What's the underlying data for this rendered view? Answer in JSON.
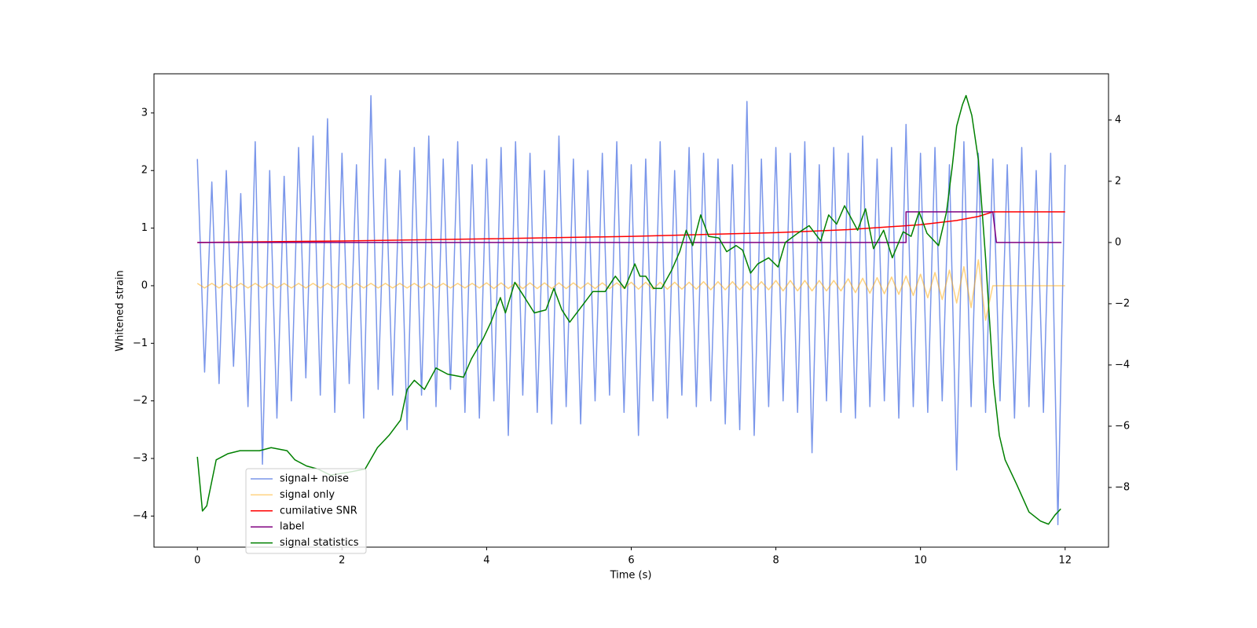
{
  "chart_data": {
    "type": "line",
    "xlabel": "Time (s)",
    "ylabel": "Whitened strain",
    "xlim": [
      -0.6,
      12.6
    ],
    "ylim": [
      -4.54,
      3.68
    ],
    "y2lim": [
      -9.95,
      5.51
    ],
    "xticks": [
      0,
      2,
      4,
      6,
      8,
      10,
      12
    ],
    "yticks": [
      {
        "value": -4,
        "label": "−4"
      },
      {
        "value": -3,
        "label": "−3"
      },
      {
        "value": -2,
        "label": "−2"
      },
      {
        "value": -1,
        "label": "−1"
      },
      0,
      1,
      2,
      3
    ],
    "y2ticks": [
      {
        "value": -8,
        "label": "−8"
      },
      {
        "value": -6,
        "label": "−6"
      },
      {
        "value": -4,
        "label": "−4"
      },
      {
        "value": -2,
        "label": "−2"
      },
      0,
      2,
      4
    ],
    "legend_loc": "lower left",
    "x": [
      0,
      0.1,
      0.2,
      0.3,
      0.4,
      0.5,
      0.6,
      0.7,
      0.8,
      0.9,
      1,
      1.1,
      1.2,
      1.3,
      1.4,
      1.5,
      1.6,
      1.7,
      1.8,
      1.9,
      2,
      2.1,
      2.2,
      2.3,
      2.4,
      2.5,
      2.6,
      2.7,
      2.8,
      2.9,
      3,
      3.1,
      3.2,
      3.3,
      3.4,
      3.5,
      3.6,
      3.7,
      3.8,
      3.9,
      4,
      4.1,
      4.2,
      4.3,
      4.4,
      4.5,
      4.6,
      4.7,
      4.8,
      4.9,
      5,
      5.1,
      5.2,
      5.3,
      5.4,
      5.5,
      5.6,
      5.7,
      5.8,
      5.9,
      6,
      6.1,
      6.2,
      6.3,
      6.4,
      6.5,
      6.6,
      6.7,
      6.8,
      6.9,
      7,
      7.1,
      7.2,
      7.3,
      7.4,
      7.5,
      7.6,
      7.7,
      7.8,
      7.9,
      8,
      8.1,
      8.2,
      8.3,
      8.4,
      8.5,
      8.6,
      8.7,
      8.8,
      8.9,
      9,
      9.1,
      9.2,
      9.3,
      9.4,
      9.5,
      9.6,
      9.7,
      9.8,
      9.9,
      10,
      10.1,
      10.2,
      10.3,
      10.4,
      10.5,
      10.6,
      10.7,
      10.8,
      10.9,
      11,
      11.1,
      11.2,
      11.3,
      11.4,
      11.5,
      11.6,
      11.7,
      11.8,
      11.9,
      12
    ],
    "series": [
      {
        "name": "signal+ noise",
        "color": "#4169e1",
        "alpha": 0.7,
        "values": [
          2.2,
          -1.5,
          1.8,
          -1.7,
          2.0,
          -1.4,
          1.6,
          -2.1,
          2.5,
          -3.1,
          2.0,
          -2.3,
          1.9,
          -2.0,
          2.4,
          -1.6,
          2.6,
          -1.9,
          2.9,
          -2.2,
          2.3,
          -1.7,
          2.1,
          -2.3,
          3.3,
          -1.8,
          2.2,
          -1.9,
          2.0,
          -2.5,
          2.4,
          -1.9,
          2.6,
          -2.1,
          2.2,
          -1.8,
          2.5,
          -2.2,
          2.1,
          -2.3,
          2.2,
          -2.0,
          2.4,
          -2.6,
          2.5,
          -1.9,
          2.3,
          -2.2,
          2.0,
          -2.4,
          2.6,
          -2.1,
          2.2,
          -2.4,
          2.0,
          -2.0,
          2.3,
          -1.9,
          2.5,
          -2.2,
          2.1,
          -2.6,
          2.2,
          -2.0,
          2.5,
          -2.3,
          2.0,
          -1.9,
          2.4,
          -2.1,
          2.3,
          -2.0,
          2.2,
          -2.4,
          2.1,
          -2.5,
          3.2,
          -2.6,
          2.2,
          -2.1,
          2.4,
          -2.0,
          2.3,
          -2.2,
          2.5,
          -2.9,
          2.1,
          -2.0,
          2.4,
          -2.2,
          2.3,
          -2.3,
          2.6,
          -2.1,
          2.2,
          -2.0,
          2.4,
          -2.3,
          2.8,
          -2.1,
          2.3,
          -2.2,
          2.4,
          -2.0,
          2.1,
          -3.2,
          2.5,
          -2.1,
          2.3,
          -2.2,
          2.2,
          -2.0,
          2.1,
          -2.3,
          2.4,
          -2.1,
          2.0,
          -2.2,
          2.3,
          -4.15,
          2.1
        ]
      },
      {
        "name": "signal only",
        "color": "#ffa500",
        "alpha": 0.5,
        "values": [
          0.04,
          -0.04,
          0.04,
          -0.04,
          0.04,
          -0.04,
          0.04,
          -0.04,
          0.04,
          -0.04,
          0.04,
          -0.04,
          0.04,
          -0.04,
          0.04,
          -0.04,
          0.04,
          -0.04,
          0.04,
          -0.04,
          0.04,
          -0.04,
          0.04,
          -0.04,
          0.04,
          -0.04,
          0.04,
          -0.04,
          0.04,
          -0.04,
          0.04,
          -0.04,
          0.04,
          -0.04,
          0.04,
          -0.04,
          0.04,
          -0.04,
          0.04,
          -0.04,
          0.05,
          -0.05,
          0.05,
          -0.05,
          0.05,
          -0.05,
          0.05,
          -0.05,
          0.05,
          -0.05,
          0.05,
          -0.05,
          0.05,
          -0.05,
          0.05,
          -0.05,
          0.05,
          -0.05,
          0.05,
          -0.05,
          0.06,
          -0.06,
          0.06,
          -0.06,
          0.06,
          -0.06,
          0.06,
          -0.06,
          0.06,
          -0.06,
          0.07,
          -0.07,
          0.07,
          -0.07,
          0.07,
          -0.07,
          0.07,
          -0.07,
          0.07,
          -0.07,
          0.09,
          -0.09,
          0.09,
          -0.09,
          0.09,
          -0.09,
          0.09,
          -0.09,
          0.09,
          -0.09,
          0.12,
          -0.12,
          0.13,
          -0.13,
          0.14,
          -0.14,
          0.15,
          -0.15,
          0.17,
          -0.17,
          0.2,
          -0.21,
          0.23,
          -0.24,
          0.27,
          -0.3,
          0.33,
          -0.38,
          0.45,
          -0.6,
          0,
          0,
          0,
          0,
          0,
          0,
          0,
          0,
          0,
          0,
          0
        ]
      },
      {
        "name": "cumilative SNR",
        "color": "#ff0000",
        "axis": "y2",
        "x": [
          0,
          2,
          4,
          6,
          8,
          9,
          10,
          10.5,
          10.8,
          11,
          12
        ],
        "values": [
          0,
          0.05,
          0.12,
          0.2,
          0.32,
          0.42,
          0.58,
          0.72,
          0.85,
          1,
          1
        ]
      },
      {
        "name": "label",
        "color": "#800080",
        "axis": "y2",
        "x": [
          0,
          9.8,
          9.8,
          11,
          11.05,
          11.95
        ],
        "values": [
          0,
          0,
          1,
          1,
          0,
          0
        ]
      },
      {
        "name": "signal statistics",
        "color": "#008000",
        "axis": "y2",
        "x": [
          0,
          0.07,
          0.13,
          0.26,
          0.42,
          0.59,
          0.86,
          1.02,
          1.24,
          1.35,
          1.51,
          1.67,
          1.84,
          2.1,
          2.32,
          2.49,
          2.65,
          2.81,
          2.9,
          3.0,
          3.14,
          3.3,
          3.46,
          3.68,
          3.79,
          3.95,
          4.06,
          4.19,
          4.26,
          4.39,
          4.5,
          4.66,
          4.82,
          4.93,
          5.04,
          5.15,
          5.31,
          5.47,
          5.64,
          5.78,
          5.91,
          6.05,
          6.12,
          6.2,
          6.31,
          6.42,
          6.56,
          6.67,
          6.76,
          6.85,
          6.96,
          7.07,
          7.21,
          7.32,
          7.45,
          7.54,
          7.65,
          7.75,
          7.9,
          8.03,
          8.13,
          8.3,
          8.46,
          8.62,
          8.73,
          8.84,
          8.95,
          9.13,
          9.24,
          9.35,
          9.49,
          9.61,
          9.76,
          9.87,
          9.98,
          10.09,
          10.25,
          10.36,
          10.44,
          10.5,
          10.58,
          10.63,
          10.71,
          10.8,
          10.9,
          11.01,
          11.09,
          11.17,
          11.33,
          11.5,
          11.66,
          11.77,
          11.86,
          11.94
        ],
        "values": [
          -7.0,
          -8.77,
          -8.6,
          -7.1,
          -6.9,
          -6.8,
          -6.8,
          -6.7,
          -6.8,
          -7.1,
          -7.3,
          -7.4,
          -7.6,
          -7.5,
          -7.4,
          -6.7,
          -6.3,
          -5.8,
          -4.8,
          -4.5,
          -4.8,
          -4.1,
          -4.3,
          -4.4,
          -3.8,
          -3.15,
          -2.6,
          -1.8,
          -2.3,
          -1.3,
          -1.7,
          -2.3,
          -2.2,
          -1.5,
          -2.2,
          -2.6,
          -2.1,
          -1.6,
          -1.6,
          -1.1,
          -1.5,
          -0.7,
          -1.1,
          -1.1,
          -1.5,
          -1.5,
          -0.9,
          -0.3,
          0.4,
          -0.1,
          0.9,
          0.2,
          0.15,
          -0.3,
          -0.1,
          -0.25,
          -1.0,
          -0.7,
          -0.5,
          -0.8,
          0.0,
          0.3,
          0.55,
          0.05,
          0.9,
          0.6,
          1.2,
          0.4,
          1.1,
          -0.2,
          0.4,
          -0.5,
          0.35,
          0.2,
          1.0,
          0.3,
          -0.1,
          1.0,
          2.5,
          3.8,
          4.5,
          4.8,
          4.15,
          2.7,
          -0.5,
          -4.6,
          -6.3,
          -7.1,
          -7.9,
          -8.8,
          -9.1,
          -9.2,
          -8.9,
          -8.7
        ]
      }
    ]
  }
}
